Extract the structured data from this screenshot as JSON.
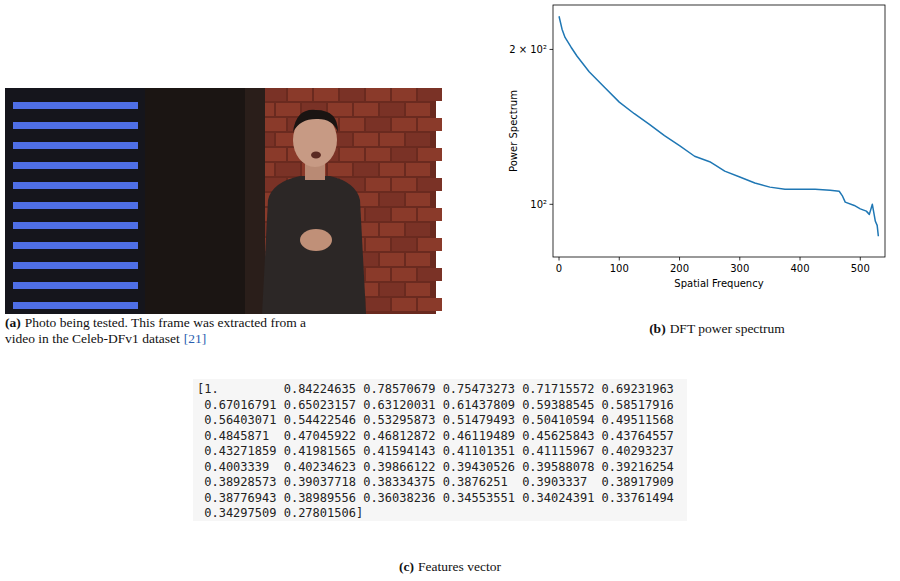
{
  "chart_data": {
    "type": "line",
    "xlabel": "Spatial Frequency",
    "ylabel": "Power Spectrum",
    "x": [
      0,
      5,
      10,
      20,
      30,
      50,
      75,
      100,
      125,
      150,
      175,
      200,
      225,
      250,
      260,
      275,
      300,
      325,
      350,
      375,
      400,
      425,
      450,
      465,
      470,
      475,
      490,
      500,
      510,
      515,
      520,
      525,
      528,
      530
    ],
    "values": [
      232,
      219,
      211,
      202,
      194,
      181,
      169,
      158,
      150,
      143,
      136,
      130,
      124,
      121,
      119,
      116,
      113,
      110,
      108,
      107,
      107,
      107,
      106.5,
      106,
      104,
      101,
      99.5,
      98,
      97,
      95.6,
      100,
      92.7,
      91,
      86.7
    ],
    "color": "#1f77b4",
    "xlim": [
      -10,
      541
    ],
    "ylim": [
      79,
      244
    ],
    "xticks": [
      0,
      100,
      200,
      300,
      400,
      500
    ],
    "yticks": [
      {
        "value": 100,
        "label": "10²"
      },
      {
        "value": 200,
        "label": "2 × 10²"
      }
    ],
    "log": "y",
    "grid": false
  },
  "figure": {
    "panel_a": {
      "label": "(a)",
      "lines": [
        "Photo being tested. This frame was extracted from a",
        "video in the Celeb-DFv1 dataset"
      ],
      "ref": "[21]"
    },
    "panel_b": {
      "label": "(b)",
      "text": "DFT power spectrum"
    },
    "panel_c": {
      "label": "(c)",
      "text": "Features vector",
      "open": "[",
      "close": "]",
      "values": [
        "1.",
        "0.84224635",
        "0.78570679",
        "0.75473273",
        "0.71715572",
        "0.69231963",
        "0.67016791",
        "0.65023157",
        "0.63120031",
        "0.61437809",
        "0.59388545",
        "0.58517916",
        "0.56403071",
        "0.54422546",
        "0.53295873",
        "0.51479493",
        "0.50410594",
        "0.49511568",
        "0.4845871",
        "0.47045922",
        "0.46812872",
        "0.46119489",
        "0.45625843",
        "0.43764557",
        "0.43271859",
        "0.41981565",
        "0.41594143",
        "0.41101351",
        "0.41115967",
        "0.40293237",
        "0.4003339",
        "0.40234623",
        "0.39866122",
        "0.39430526",
        "0.39588078",
        "0.39216254",
        "0.38928573",
        "0.39037718",
        "0.38334375",
        "0.3876251",
        "0.3903337",
        "0.38917909",
        "0.38776943",
        "0.38989556",
        "0.36038236",
        "0.34553551",
        "0.34024391",
        "0.33761494",
        "0.34297509",
        "0.27801506"
      ]
    }
  }
}
